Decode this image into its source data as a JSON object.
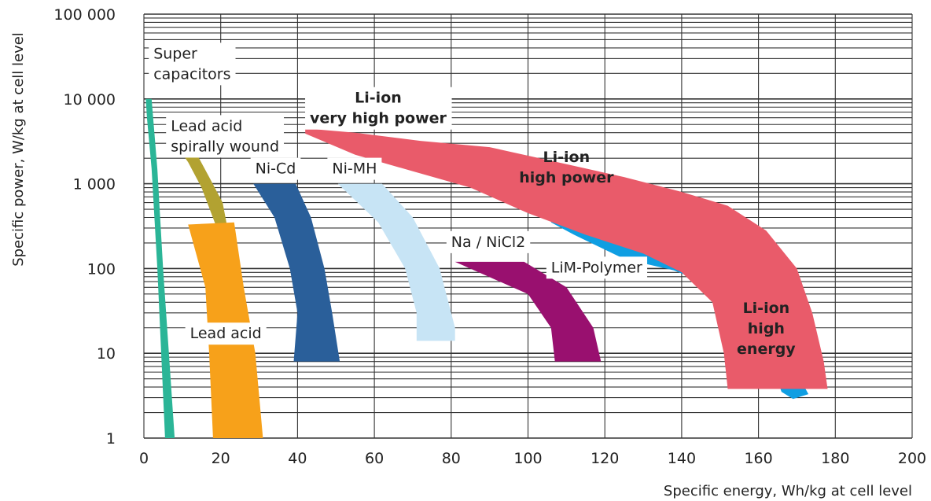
{
  "chart_data": {
    "type": "area",
    "xlabel": "Specific energy, Wh/kg at cell level",
    "ylabel": "Specific power,  W/kg at cell level",
    "xlim": [
      0,
      200
    ],
    "ylim": [
      1,
      100000
    ],
    "yscale": "log",
    "grid": true,
    "x_ticks": [
      "0",
      "20",
      "40",
      "60",
      "80",
      "100",
      "120",
      "140",
      "160",
      "180",
      "200"
    ],
    "y_ticks": [
      "1",
      "10",
      "100",
      "1 000",
      "10 000",
      "100 000"
    ],
    "regions": [
      {
        "name": "Super capacitors",
        "label_lines": [
          "Super",
          "capacitors"
        ],
        "color": "#2bb597",
        "label_at": [
          2.5,
          30000
        ],
        "polygon": [
          [
            0.5,
            10000
          ],
          [
            2,
            10000
          ],
          [
            3.5,
            1500
          ],
          [
            5,
            100
          ],
          [
            6.5,
            10
          ],
          [
            8,
            1
          ],
          [
            5.5,
            1
          ],
          [
            4.5,
            10
          ],
          [
            3.5,
            100
          ],
          [
            2,
            1500
          ],
          [
            0.8,
            6000
          ]
        ]
      },
      {
        "name": "Lead acid spirally wound",
        "label_lines": [
          "Lead acid",
          "spirally wound"
        ],
        "color": "#b2a231",
        "label_at": [
          7,
          4200
        ],
        "polygon": [
          [
            9,
            2600
          ],
          [
            13,
            2600
          ],
          [
            17,
            1200
          ],
          [
            20.5,
            600
          ],
          [
            22.5,
            200
          ],
          [
            22,
            95
          ],
          [
            19.5,
            95
          ],
          [
            19,
            300
          ],
          [
            15,
            900
          ],
          [
            11.5,
            1800
          ]
        ]
      },
      {
        "name": "Lead acid",
        "label_lines": [
          "Lead acid"
        ],
        "color": "#f7a11a",
        "label_at": [
          12,
          15
        ],
        "polygon": [
          [
            11.5,
            330
          ],
          [
            23.5,
            350
          ],
          [
            26,
            60
          ],
          [
            29,
            10
          ],
          [
            31,
            1
          ],
          [
            18,
            1
          ],
          [
            17,
            10
          ],
          [
            16,
            60
          ]
        ]
      },
      {
        "name": "Ni-Cd",
        "label_lines": [
          "Ni-Cd"
        ],
        "color": "#2a5f9a",
        "label_at": [
          29,
          1320
        ],
        "polygon": [
          [
            28.5,
            1000
          ],
          [
            39.5,
            1000
          ],
          [
            43.5,
            400
          ],
          [
            47,
            100
          ],
          [
            49,
            30
          ],
          [
            51,
            8
          ],
          [
            39,
            8
          ],
          [
            40,
            30
          ],
          [
            38,
            100
          ],
          [
            34,
            400
          ]
        ]
      },
      {
        "name": "Ni-MH",
        "label_lines": [
          "Ni-MH"
        ],
        "color": "#c7e4f5",
        "label_at": [
          49,
          1320
        ],
        "polygon": [
          [
            50.5,
            1000
          ],
          [
            62,
            1000
          ],
          [
            70,
            400
          ],
          [
            77,
            100
          ],
          [
            81,
            20
          ],
          [
            81,
            14
          ],
          [
            71,
            14
          ],
          [
            71,
            30
          ],
          [
            68,
            100
          ],
          [
            61,
            350
          ]
        ]
      },
      {
        "name": "Na / NiCl2",
        "label_lines": [
          "Na / NiCl2"
        ],
        "color": "#99106f",
        "label_at": [
          80,
          180
        ],
        "polygon": [
          [
            81,
            120
          ],
          [
            99,
            120
          ],
          [
            110,
            60
          ],
          [
            117,
            20
          ],
          [
            119,
            8
          ],
          [
            107,
            8
          ],
          [
            106,
            20
          ],
          [
            100,
            50
          ]
        ]
      },
      {
        "name": "LiM-Polymer",
        "label_lines": [
          "LiM-Polymer"
        ],
        "color": "#0f9ee2",
        "label_at": [
          106,
          90
        ],
        "polygon": [
          [
            107,
            500
          ],
          [
            110,
            400
          ],
          [
            120,
            320
          ],
          [
            130,
            230
          ],
          [
            140,
            160
          ],
          [
            150,
            90
          ],
          [
            162,
            25
          ],
          [
            172,
            4
          ],
          [
            173,
            3.3
          ],
          [
            169,
            2.9
          ],
          [
            166,
            3.5
          ],
          [
            160,
            20
          ],
          [
            149,
            60
          ],
          [
            138,
            95
          ],
          [
            125,
            130
          ],
          [
            112,
            250
          ],
          [
            106,
            350
          ]
        ]
      },
      {
        "name": "Li-ion very high power",
        "label_lines": [
          "Li-ion",
          "very high power"
        ],
        "color": "#e95b6a",
        "label_at": [
          61,
          9000
        ],
        "polygon": [
          [
            42,
            4500
          ],
          [
            55,
            4000
          ],
          [
            72,
            3200
          ],
          [
            90,
            2700
          ],
          [
            110,
            1700
          ],
          [
            125,
            1200
          ],
          [
            140,
            800
          ],
          [
            152,
            550
          ],
          [
            162,
            280
          ],
          [
            170,
            100
          ],
          [
            174,
            30
          ],
          [
            177,
            8
          ],
          [
            178,
            3.8
          ],
          [
            152,
            3.8
          ],
          [
            151,
            10
          ],
          [
            148,
            40
          ],
          [
            140,
            90
          ],
          [
            130,
            150
          ],
          [
            115,
            250
          ],
          [
            100,
            450
          ],
          [
            85,
            900
          ],
          [
            70,
            1400
          ],
          [
            55,
            2200
          ],
          [
            42,
            3900
          ]
        ]
      },
      {
        "name": "Li-ion high power",
        "label_lines": [
          "Li-ion",
          "high power"
        ],
        "color": "#e95b6a",
        "label_at": [
          110,
          1800
        ],
        "polygon": []
      },
      {
        "name": "Li-ion high energy",
        "label_lines": [
          "Li-ion",
          "high",
          "energy"
        ],
        "color": "#e95b6a",
        "label_at": [
          162,
          30
        ],
        "polygon": []
      }
    ]
  }
}
